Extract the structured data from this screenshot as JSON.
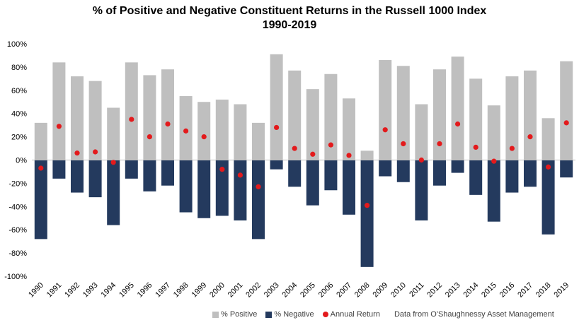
{
  "chart_data": {
    "type": "bar",
    "title": "% of Positive and Negative Constituent Returns in the Russell 1000 Index",
    "subtitle": "1990-2019",
    "categories": [
      "1990",
      "1991",
      "1992",
      "1993",
      "1994",
      "1995",
      "1996",
      "1997",
      "1998",
      "1999",
      "2000",
      "2001",
      "2002",
      "2003",
      "2004",
      "2005",
      "2006",
      "2007",
      "2008",
      "2009",
      "2010",
      "2011",
      "2012",
      "2013",
      "2014",
      "2015",
      "2016",
      "2017",
      "2018",
      "2019"
    ],
    "series": [
      {
        "name": "% Positive",
        "kind": "bar",
        "color": "#bfbfbf",
        "values": [
          32,
          84,
          72,
          68,
          45,
          84,
          73,
          78,
          55,
          50,
          52,
          48,
          32,
          91,
          77,
          61,
          74,
          53,
          8,
          86,
          81,
          48,
          78,
          89,
          70,
          47,
          72,
          77,
          36,
          85
        ]
      },
      {
        "name": "% Negative",
        "kind": "bar",
        "color": "#243a5e",
        "values": [
          -68,
          -16,
          -28,
          -32,
          -56,
          -16,
          -27,
          -22,
          -45,
          -50,
          -48,
          -52,
          -68,
          -8,
          -23,
          -39,
          -26,
          -47,
          -92,
          -14,
          -19,
          -52,
          -22,
          -11,
          -30,
          -53,
          -28,
          -23,
          -64,
          -15
        ]
      },
      {
        "name": "Annual Return",
        "kind": "scatter",
        "color": "#e31a1c",
        "values": [
          -7,
          29,
          6,
          7,
          -2,
          35,
          20,
          31,
          25,
          20,
          -8,
          -13,
          -23,
          28,
          10,
          5,
          13,
          4,
          -39,
          26,
          14,
          0,
          14,
          31,
          11,
          -1,
          10,
          20,
          -6,
          32
        ]
      }
    ],
    "y_ticks": [
      "100%",
      "80%",
      "60%",
      "40%",
      "20%",
      "0%",
      "-20%",
      "-40%",
      "-60%",
      "-80%",
      "-100%"
    ],
    "ylim": [
      -100,
      100
    ],
    "grid": false,
    "legend_position": "bottom-right",
    "source": "Data from O'Shaughnessy Asset Management"
  }
}
